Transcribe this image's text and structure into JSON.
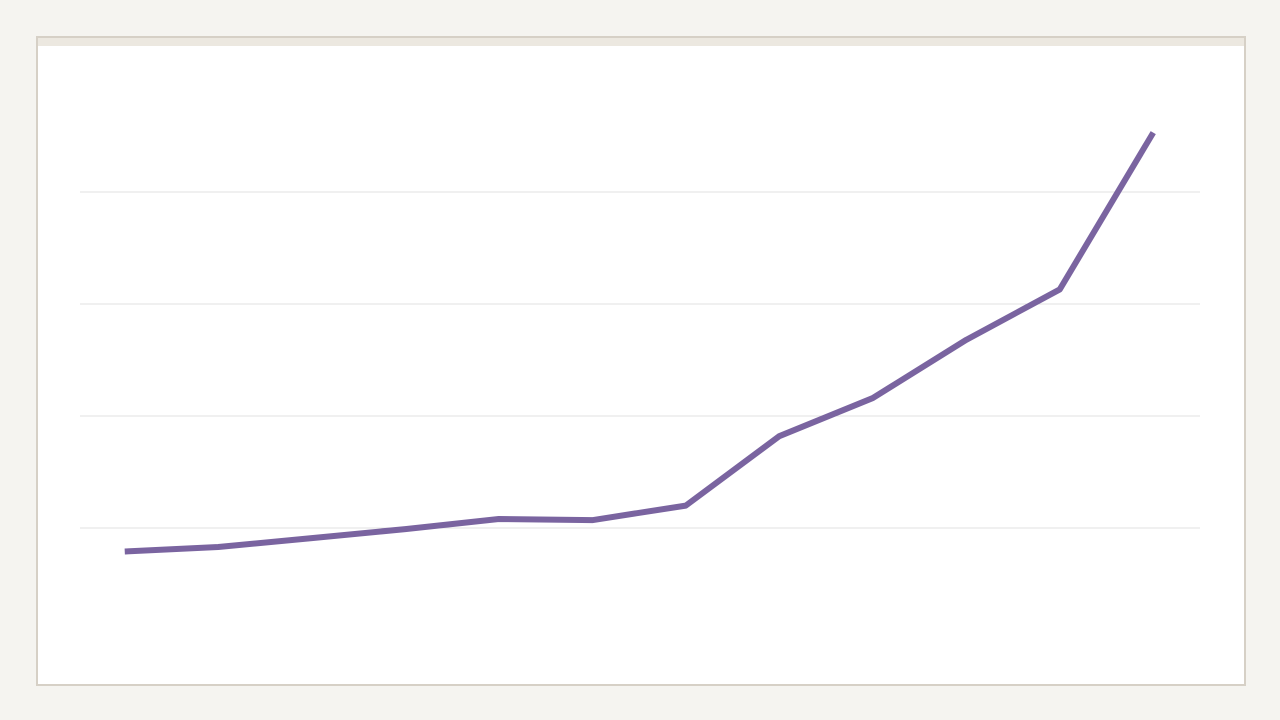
{
  "chart_data": {
    "type": "line",
    "categories": [
      null,
      null,
      null,
      null,
      null,
      null,
      null,
      null,
      null,
      null,
      null,
      null
    ],
    "values": [
      0.79,
      0.83,
      0.91,
      0.99,
      1.08,
      1.07,
      1.2,
      1.82,
      2.16,
      2.68,
      3.13,
      4.53
    ],
    "color": "#7a64a0",
    "ylim": [
      0,
      5
    ],
    "yticks": [
      1,
      2,
      3,
      4
    ],
    "grid": true
  }
}
